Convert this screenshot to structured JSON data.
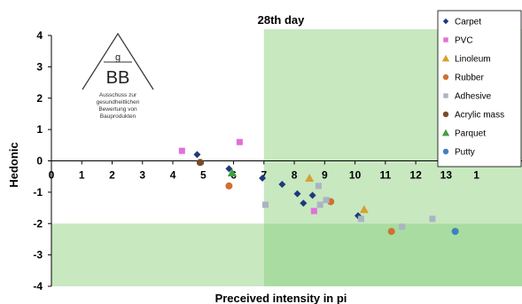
{
  "chart_data": {
    "type": "scatter",
    "title": "28th day",
    "xlabel": "Preceived intensity in pi",
    "ylabel": "Hedonic",
    "xlim": [
      0,
      15.5
    ],
    "ylim": [
      -4,
      4
    ],
    "x_ticks": [
      "0",
      "1",
      "2",
      "3",
      "4",
      "5",
      "6",
      "7",
      "8",
      "9",
      "10",
      "11",
      "12",
      "13",
      "1"
    ],
    "y_ticks": [
      "4",
      "3",
      "2",
      "1",
      "0",
      "-1",
      "-2",
      "-3",
      "-4"
    ],
    "legend_position": "top-right",
    "grid": false,
    "shaded_regions": [
      {
        "x": [
          7,
          15.5
        ],
        "y": [
          -2,
          4.2
        ],
        "color": "#c8e8c0"
      },
      {
        "x": [
          0,
          7
        ],
        "y": [
          -4,
          -2
        ],
        "color": "#c8e8c0"
      },
      {
        "x": [
          7,
          15.5
        ],
        "y": [
          -4,
          -2
        ],
        "color": "#a8dca0"
      }
    ],
    "series": [
      {
        "name": "Carpet",
        "marker": "diamond",
        "color": "#1f3a7a",
        "points": [
          [
            4.8,
            0.2
          ],
          [
            5.85,
            -0.25
          ],
          [
            6.95,
            -0.55
          ],
          [
            7.6,
            -0.75
          ],
          [
            8.1,
            -1.05
          ],
          [
            8.3,
            -1.35
          ],
          [
            8.6,
            -1.1
          ],
          [
            10.1,
            -1.75
          ]
        ]
      },
      {
        "name": "PVC",
        "marker": "square",
        "color": "#e070d8",
        "points": [
          [
            4.3,
            0.32
          ],
          [
            6.2,
            0.6
          ],
          [
            8.65,
            -1.6
          ]
        ]
      },
      {
        "name": "Linoleum",
        "marker": "triangle",
        "color": "#d8a030",
        "points": [
          [
            8.5,
            -0.55
          ],
          [
            10.3,
            -1.55
          ]
        ]
      },
      {
        "name": "Rubber",
        "marker": "circle",
        "color": "#d07030",
        "points": [
          [
            5.85,
            -0.8
          ],
          [
            9.2,
            -1.3
          ],
          [
            11.2,
            -2.25
          ]
        ]
      },
      {
        "name": "Adhesive",
        "marker": "square",
        "color": "#aab4c4",
        "points": [
          [
            7.05,
            -1.4
          ],
          [
            8.8,
            -0.8
          ],
          [
            8.85,
            -1.4
          ],
          [
            9.05,
            -1.25
          ],
          [
            10.2,
            -1.85
          ],
          [
            11.55,
            -2.1
          ],
          [
            12.55,
            -1.85
          ]
        ]
      },
      {
        "name": "Acrylic mass",
        "marker": "circle",
        "color": "#7a4a2a",
        "points": [
          [
            4.9,
            -0.05
          ]
        ]
      },
      {
        "name": "Parquet",
        "marker": "triangle",
        "color": "#40a040",
        "points": [
          [
            5.95,
            -0.38
          ]
        ]
      },
      {
        "name": "Putty",
        "marker": "circle",
        "color": "#4080c0",
        "points": [
          [
            13.3,
            -2.25
          ]
        ]
      }
    ]
  },
  "logo": {
    "letter_top": "g",
    "letters": "BB",
    "text_lines": [
      "Ausschuss zur",
      "gesundheitlichen",
      "Bewertung von",
      "Bauprodukten"
    ]
  }
}
